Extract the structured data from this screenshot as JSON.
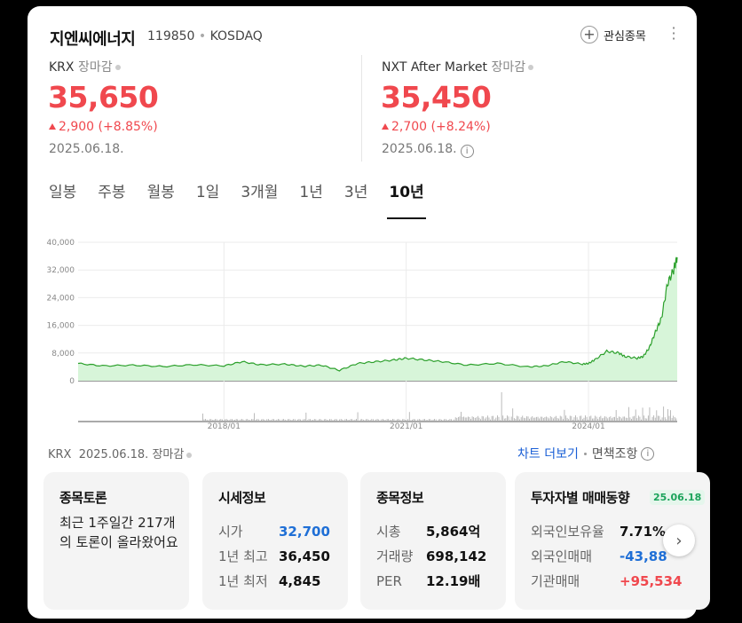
{
  "header": {
    "name": "지엔씨에너지",
    "code": "119850",
    "market": "KOSDAQ",
    "fav_label": "관심종목"
  },
  "krx": {
    "label": "KRX",
    "status": "장마감",
    "price": "35,650",
    "change": "2,900",
    "change_pct": "(+8.85%)",
    "date": "2025.06.18."
  },
  "nxt": {
    "label": "NXT After Market",
    "status": "장마감",
    "price": "35,450",
    "change": "2,700",
    "change_pct": "(+8.24%)",
    "date": "2025.06.18."
  },
  "tabs": [
    {
      "label": "일봉"
    },
    {
      "label": "주봉"
    },
    {
      "label": "월봉"
    },
    {
      "label": "1일"
    },
    {
      "label": "3개월"
    },
    {
      "label": "1년"
    },
    {
      "label": "3년"
    },
    {
      "label": "10년"
    }
  ],
  "colors": {
    "up": "#f0484e",
    "down": "#1f6fd6",
    "line": "#2ca02c",
    "fill": "#d7f5d9"
  },
  "chart_data": {
    "type": "area",
    "y_ticks": [
      "40,000",
      "32,000",
      "24,000",
      "16,000",
      "8,000",
      "0"
    ],
    "ylim": [
      0,
      40000
    ],
    "x_ticks": [
      "2018/01",
      "2021/01",
      "2024/01"
    ],
    "x": [
      2015.6,
      2016.0,
      2016.5,
      2017.0,
      2017.5,
      2018.0,
      2018.3,
      2018.6,
      2019.0,
      2019.3,
      2019.6,
      2019.9,
      2020.2,
      2020.5,
      2020.8,
      2021.0,
      2021.3,
      2021.6,
      2022.0,
      2022.5,
      2023.0,
      2023.3,
      2023.6,
      2023.9,
      2024.0,
      2024.1,
      2024.3,
      2024.5,
      2024.6,
      2024.8,
      2024.9,
      2025.0,
      2025.1,
      2025.2,
      2025.3,
      2025.4,
      2025.46
    ],
    "values": [
      5000,
      4300,
      4500,
      4100,
      4600,
      4300,
      5500,
      4600,
      4800,
      4200,
      4500,
      3000,
      5000,
      5500,
      6000,
      6500,
      6000,
      5500,
      4500,
      5000,
      4000,
      4300,
      5500,
      4800,
      5000,
      6000,
      8500,
      8000,
      7000,
      6500,
      7000,
      9500,
      14000,
      18000,
      28000,
      32000,
      35650
    ]
  },
  "footer": {
    "market": "KRX",
    "date": "2025.06.18.",
    "status": "장마감",
    "more": "차트 더보기",
    "disclaimer": "면책조항"
  },
  "cards": {
    "discussion": {
      "title": "종목토론",
      "text": "최근 1주일간 217개의 토론이 올라왔어요"
    },
    "price_info": {
      "title": "시세정보",
      "rows": [
        {
          "label": "시가",
          "value": "32,700"
        },
        {
          "label": "1년 최고",
          "value": "36,450"
        },
        {
          "label": "1년 최저",
          "value": "4,845"
        }
      ]
    },
    "stock_info": {
      "title": "종목정보",
      "rows": [
        {
          "label": "시총",
          "value": "5,864억"
        },
        {
          "label": "거래량",
          "value": "698,142"
        },
        {
          "label": "PER",
          "value": "12.19배"
        }
      ]
    },
    "investor": {
      "title": "투자자별 매매동향",
      "badge": "25.06.18",
      "rows": [
        {
          "label": "외국인보유율",
          "value": "7.71%"
        },
        {
          "label": "외국인매매",
          "value": "-43,88"
        },
        {
          "label": "기관매매",
          "value": "+95,534"
        }
      ]
    }
  }
}
